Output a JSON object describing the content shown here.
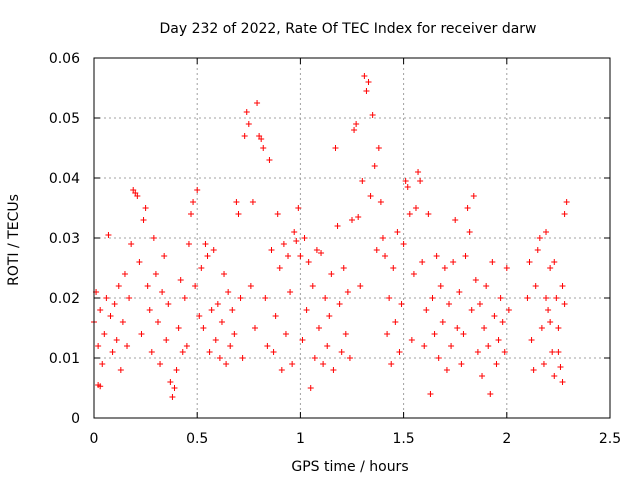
{
  "chart_data": {
    "type": "scatter",
    "title": "Day 232 of 2022, Rate Of TEC Index for receiver darw",
    "xlabel": "GPS time / hours",
    "ylabel": "ROTI / TECUs",
    "xlim": [
      0,
      2.5
    ],
    "ylim": [
      0,
      0.06
    ],
    "x_ticks": [
      0,
      0.5,
      1,
      1.5,
      2,
      2.5
    ],
    "x_tick_labels": [
      "0",
      "0.5",
      "1",
      "1.5",
      "2",
      "2.5"
    ],
    "y_ticks": [
      0,
      0.01,
      0.02,
      0.03,
      0.04,
      0.05,
      0.06
    ],
    "y_tick_labels": [
      "0",
      "0.01",
      "0.02",
      "0.03",
      "0.04",
      "0.05",
      "0.06"
    ],
    "grid": true,
    "marker": "+",
    "color": "#ff0000",
    "series": [
      {
        "points": [
          [
            0.0,
            0.016
          ],
          [
            0.01,
            0.021
          ],
          [
            0.02,
            0.012
          ],
          [
            0.02,
            0.0055
          ],
          [
            0.03,
            0.0053
          ],
          [
            0.03,
            0.018
          ],
          [
            0.04,
            0.009
          ],
          [
            0.05,
            0.014
          ],
          [
            0.06,
            0.02
          ],
          [
            0.07,
            0.0305
          ],
          [
            0.08,
            0.017
          ],
          [
            0.09,
            0.011
          ],
          [
            0.1,
            0.019
          ],
          [
            0.11,
            0.013
          ],
          [
            0.12,
            0.022
          ],
          [
            0.13,
            0.008
          ],
          [
            0.14,
            0.016
          ],
          [
            0.15,
            0.024
          ],
          [
            0.16,
            0.012
          ],
          [
            0.17,
            0.02
          ],
          [
            0.18,
            0.029
          ],
          [
            0.19,
            0.038
          ],
          [
            0.2,
            0.0375
          ],
          [
            0.21,
            0.037
          ],
          [
            0.22,
            0.026
          ],
          [
            0.23,
            0.014
          ],
          [
            0.24,
            0.033
          ],
          [
            0.25,
            0.035
          ],
          [
            0.26,
            0.022
          ],
          [
            0.27,
            0.018
          ],
          [
            0.28,
            0.011
          ],
          [
            0.29,
            0.03
          ],
          [
            0.3,
            0.024
          ],
          [
            0.31,
            0.016
          ],
          [
            0.32,
            0.009
          ],
          [
            0.33,
            0.021
          ],
          [
            0.34,
            0.027
          ],
          [
            0.35,
            0.013
          ],
          [
            0.36,
            0.019
          ],
          [
            0.37,
            0.006
          ],
          [
            0.38,
            0.0035
          ],
          [
            0.39,
            0.005
          ],
          [
            0.4,
            0.008
          ],
          [
            0.41,
            0.015
          ],
          [
            0.42,
            0.023
          ],
          [
            0.43,
            0.011
          ],
          [
            0.44,
            0.02
          ],
          [
            0.45,
            0.012
          ],
          [
            0.46,
            0.029
          ],
          [
            0.47,
            0.034
          ],
          [
            0.48,
            0.036
          ],
          [
            0.49,
            0.022
          ],
          [
            0.5,
            0.038
          ],
          [
            0.51,
            0.017
          ],
          [
            0.52,
            0.025
          ],
          [
            0.53,
            0.015
          ],
          [
            0.54,
            0.029
          ],
          [
            0.55,
            0.027
          ],
          [
            0.56,
            0.011
          ],
          [
            0.57,
            0.018
          ],
          [
            0.58,
            0.028
          ],
          [
            0.59,
            0.013
          ],
          [
            0.6,
            0.019
          ],
          [
            0.61,
            0.01
          ],
          [
            0.62,
            0.016
          ],
          [
            0.63,
            0.024
          ],
          [
            0.64,
            0.009
          ],
          [
            0.65,
            0.021
          ],
          [
            0.66,
            0.012
          ],
          [
            0.67,
            0.018
          ],
          [
            0.68,
            0.014
          ],
          [
            0.69,
            0.036
          ],
          [
            0.7,
            0.034
          ],
          [
            0.71,
            0.02
          ],
          [
            0.72,
            0.01
          ],
          [
            0.73,
            0.047
          ],
          [
            0.74,
            0.051
          ],
          [
            0.75,
            0.049
          ],
          [
            0.76,
            0.022
          ],
          [
            0.77,
            0.036
          ],
          [
            0.78,
            0.015
          ],
          [
            0.79,
            0.0525
          ],
          [
            0.8,
            0.047
          ],
          [
            0.81,
            0.0465
          ],
          [
            0.82,
            0.045
          ],
          [
            0.83,
            0.02
          ],
          [
            0.84,
            0.012
          ],
          [
            0.85,
            0.043
          ],
          [
            0.86,
            0.028
          ],
          [
            0.87,
            0.011
          ],
          [
            0.88,
            0.017
          ],
          [
            0.89,
            0.034
          ],
          [
            0.9,
            0.025
          ],
          [
            0.91,
            0.008
          ],
          [
            0.92,
            0.029
          ],
          [
            0.93,
            0.014
          ],
          [
            0.94,
            0.027
          ],
          [
            0.95,
            0.021
          ],
          [
            0.96,
            0.009
          ],
          [
            0.97,
            0.031
          ],
          [
            0.98,
            0.0295
          ],
          [
            0.99,
            0.035
          ],
          [
            1.0,
            0.027
          ],
          [
            1.01,
            0.013
          ],
          [
            1.02,
            0.03
          ],
          [
            1.03,
            0.018
          ],
          [
            1.04,
            0.026
          ],
          [
            1.05,
            0.005
          ],
          [
            1.06,
            0.022
          ],
          [
            1.07,
            0.01
          ],
          [
            1.08,
            0.028
          ],
          [
            1.09,
            0.015
          ],
          [
            1.1,
            0.0275
          ],
          [
            1.11,
            0.009
          ],
          [
            1.12,
            0.02
          ],
          [
            1.13,
            0.012
          ],
          [
            1.14,
            0.017
          ],
          [
            1.15,
            0.024
          ],
          [
            1.16,
            0.008
          ],
          [
            1.17,
            0.045
          ],
          [
            1.18,
            0.032
          ],
          [
            1.19,
            0.019
          ],
          [
            1.2,
            0.011
          ],
          [
            1.21,
            0.025
          ],
          [
            1.22,
            0.014
          ],
          [
            1.23,
            0.021
          ],
          [
            1.24,
            0.01
          ],
          [
            1.25,
            0.033
          ],
          [
            1.26,
            0.048
          ],
          [
            1.27,
            0.049
          ],
          [
            1.28,
            0.0335
          ],
          [
            1.29,
            0.022
          ],
          [
            1.3,
            0.0395
          ],
          [
            1.31,
            0.057
          ],
          [
            1.32,
            0.0545
          ],
          [
            1.33,
            0.056
          ],
          [
            1.34,
            0.037
          ],
          [
            1.35,
            0.0505
          ],
          [
            1.36,
            0.042
          ],
          [
            1.37,
            0.028
          ],
          [
            1.38,
            0.045
          ],
          [
            1.39,
            0.036
          ],
          [
            1.4,
            0.03
          ],
          [
            1.41,
            0.027
          ],
          [
            1.42,
            0.014
          ],
          [
            1.43,
            0.02
          ],
          [
            1.44,
            0.009
          ],
          [
            1.45,
            0.025
          ],
          [
            1.46,
            0.016
          ],
          [
            1.47,
            0.031
          ],
          [
            1.48,
            0.011
          ],
          [
            1.49,
            0.019
          ],
          [
            1.5,
            0.029
          ],
          [
            1.51,
            0.0395
          ],
          [
            1.52,
            0.0385
          ],
          [
            1.53,
            0.034
          ],
          [
            1.54,
            0.013
          ],
          [
            1.55,
            0.024
          ],
          [
            1.56,
            0.035
          ],
          [
            1.57,
            0.041
          ],
          [
            1.58,
            0.0395
          ],
          [
            1.59,
            0.026
          ],
          [
            1.6,
            0.012
          ],
          [
            1.61,
            0.018
          ],
          [
            1.62,
            0.034
          ],
          [
            1.63,
            0.004
          ],
          [
            1.64,
            0.02
          ],
          [
            1.65,
            0.014
          ],
          [
            1.66,
            0.027
          ],
          [
            1.67,
            0.01
          ],
          [
            1.68,
            0.022
          ],
          [
            1.69,
            0.016
          ],
          [
            1.7,
            0.025
          ],
          [
            1.71,
            0.008
          ],
          [
            1.72,
            0.019
          ],
          [
            1.73,
            0.012
          ],
          [
            1.74,
            0.026
          ],
          [
            1.75,
            0.033
          ],
          [
            1.76,
            0.015
          ],
          [
            1.77,
            0.021
          ],
          [
            1.78,
            0.009
          ],
          [
            1.79,
            0.014
          ],
          [
            1.8,
            0.027
          ],
          [
            1.81,
            0.035
          ],
          [
            1.82,
            0.031
          ],
          [
            1.83,
            0.018
          ],
          [
            1.84,
            0.037
          ],
          [
            1.85,
            0.023
          ],
          [
            1.86,
            0.011
          ],
          [
            1.87,
            0.019
          ],
          [
            1.88,
            0.007
          ],
          [
            1.89,
            0.015
          ],
          [
            1.9,
            0.022
          ],
          [
            1.91,
            0.012
          ],
          [
            1.92,
            0.004
          ],
          [
            1.93,
            0.026
          ],
          [
            1.94,
            0.017
          ],
          [
            1.95,
            0.009
          ],
          [
            1.96,
            0.013
          ],
          [
            1.97,
            0.02
          ],
          [
            1.98,
            0.016
          ],
          [
            1.99,
            0.011
          ],
          [
            2.0,
            0.025
          ],
          [
            2.01,
            0.018
          ],
          [
            2.1,
            0.02
          ],
          [
            2.11,
            0.026
          ],
          [
            2.12,
            0.013
          ],
          [
            2.13,
            0.008
          ],
          [
            2.14,
            0.022
          ],
          [
            2.15,
            0.028
          ],
          [
            2.16,
            0.03
          ],
          [
            2.17,
            0.015
          ],
          [
            2.18,
            0.009
          ],
          [
            2.19,
            0.031
          ],
          [
            2.2,
            0.018
          ],
          [
            2.21,
            0.025
          ],
          [
            2.22,
            0.011
          ],
          [
            2.23,
            0.007
          ],
          [
            2.24,
            0.02
          ],
          [
            2.25,
            0.015
          ],
          [
            2.26,
            0.0085
          ],
          [
            2.27,
            0.006
          ],
          [
            2.28,
            0.034
          ],
          [
            2.29,
            0.036
          ],
          [
            2.28,
            0.019
          ],
          [
            2.27,
            0.022
          ],
          [
            2.25,
            0.011
          ],
          [
            2.23,
            0.026
          ],
          [
            2.21,
            0.016
          ],
          [
            2.19,
            0.02
          ]
        ]
      }
    ]
  }
}
